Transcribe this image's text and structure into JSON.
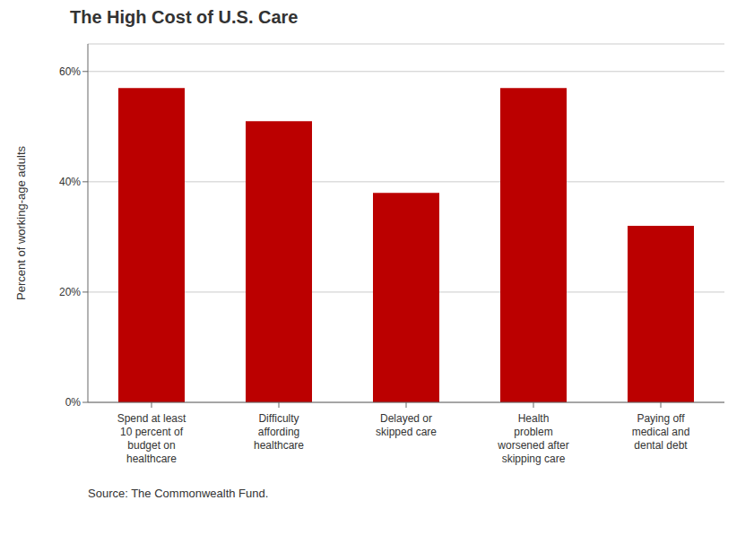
{
  "chart_data": {
    "type": "bar",
    "title": "The High Cost of U.S. Care",
    "categories": [
      "Spend at least\n10 percent of\nbudget on\nhealthcare",
      "Difficulty\naffording\nhealthcare",
      "Delayed or\nskipped care",
      "Health\nproblem\nworsened after\nskipping care",
      "Paying off\nmedical and\ndental debt"
    ],
    "values": [
      57,
      51,
      38,
      57,
      32
    ],
    "color": "#BB0000",
    "ylabel": "Percent of working-age adults",
    "ylim": [
      0,
      65
    ],
    "yticks": [
      {
        "value": 0,
        "label": "0%"
      },
      {
        "value": 20,
        "label": "20%"
      },
      {
        "value": 40,
        "label": "40%"
      },
      {
        "value": 60,
        "label": "60%"
      }
    ],
    "grid": true,
    "annotation": "Source: The Commonwealth Fund."
  }
}
